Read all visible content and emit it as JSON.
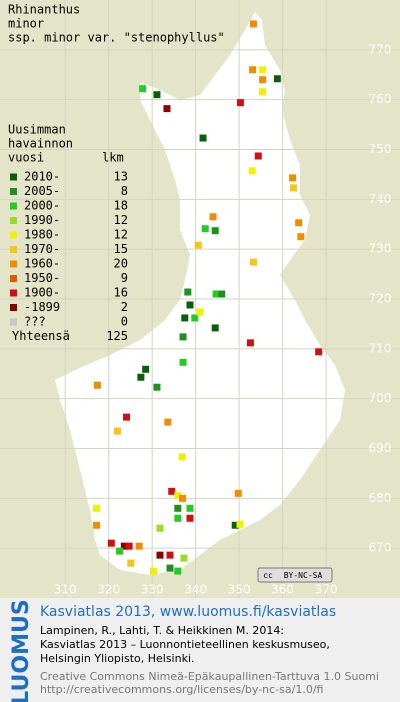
{
  "title": [
    "Rhinanthus",
    "minor",
    "ssp. minor var. \"stenophyllus\""
  ],
  "legend": {
    "heading": [
      "Uusimman",
      "havainnon",
      "vuosi"
    ],
    "count_heading": "lkm",
    "items": [
      {
        "label": "2010-",
        "count": 13,
        "color": "#0b5d0b"
      },
      {
        "label": "2005-",
        "count": 8,
        "color": "#1f8f1f"
      },
      {
        "label": "2000-",
        "count": 18,
        "color": "#22cc22"
      },
      {
        "label": "1990-",
        "count": 12,
        "color": "#99dd22"
      },
      {
        "label": "1980-",
        "count": 12,
        "color": "#f0f000"
      },
      {
        "label": "1970-",
        "count": 15,
        "color": "#f5c518"
      },
      {
        "label": "1960-",
        "count": 20,
        "color": "#f08c00"
      },
      {
        "label": "1950-",
        "count": 9,
        "color": "#e05a00"
      },
      {
        "label": "1900-",
        "count": 16,
        "color": "#d01010"
      },
      {
        "label": "-1899",
        "count": 2,
        "color": "#8b0000"
      },
      {
        "label": "???",
        "count": 0,
        "color": "#c8c8c8"
      }
    ],
    "total_label": "Yhteensä",
    "total": 125
  },
  "map": {
    "xlim": [
      295,
      387
    ],
    "ylim": [
      660,
      780
    ],
    "xticks": [
      310,
      320,
      330,
      340,
      350,
      360,
      370
    ],
    "yticks": [
      670,
      680,
      690,
      700,
      710,
      720,
      730,
      740,
      750,
      760,
      770
    ],
    "points": [
      [
        353.3,
        775.2,
        6
      ],
      [
        327.8,
        762.2,
        2
      ],
      [
        331.1,
        761.0,
        0
      ],
      [
        333.4,
        758.2,
        9
      ],
      [
        353.1,
        766.0,
        6
      ],
      [
        355.4,
        766.0,
        4
      ],
      [
        355.4,
        764.0,
        6
      ],
      [
        355.4,
        761.6,
        4
      ],
      [
        358.8,
        764.2,
        0
      ],
      [
        350.3,
        759.4,
        8
      ],
      [
        341.7,
        752.3,
        0
      ],
      [
        354.4,
        748.7,
        8
      ],
      [
        362.3,
        744.3,
        6
      ],
      [
        362.5,
        742.3,
        5
      ],
      [
        353.0,
        745.7,
        4
      ],
      [
        344.0,
        736.5,
        6
      ],
      [
        342.2,
        734.1,
        2
      ],
      [
        344.5,
        733.7,
        1
      ],
      [
        340.6,
        730.8,
        5
      ],
      [
        363.7,
        735.3,
        6
      ],
      [
        364.2,
        732.5,
        6
      ],
      [
        353.3,
        727.4,
        5
      ],
      [
        344.7,
        721.0,
        2
      ],
      [
        346.0,
        721.0,
        1
      ],
      [
        338.2,
        721.4,
        1
      ],
      [
        338.7,
        718.8,
        0
      ],
      [
        337.5,
        716.2,
        0
      ],
      [
        339.8,
        716.2,
        2
      ],
      [
        341.0,
        717.4,
        4
      ],
      [
        344.5,
        714.2,
        0
      ],
      [
        352.6,
        711.2,
        8
      ],
      [
        368.3,
        709.4,
        8
      ],
      [
        337.1,
        712.4,
        1
      ],
      [
        337.1,
        707.3,
        2
      ],
      [
        328.5,
        705.9,
        0
      ],
      [
        327.4,
        704.3,
        0
      ],
      [
        331.1,
        702.3,
        1
      ],
      [
        317.4,
        702.7,
        6
      ],
      [
        324.1,
        696.3,
        8
      ],
      [
        322.0,
        693.5,
        5
      ],
      [
        333.6,
        695.3,
        6
      ],
      [
        336.9,
        688.3,
        4
      ],
      [
        334.5,
        681.4,
        8
      ],
      [
        335.9,
        680.6,
        4
      ],
      [
        337.0,
        680.0,
        6
      ],
      [
        335.9,
        678.0,
        1
      ],
      [
        338.7,
        678.0,
        2
      ],
      [
        335.9,
        676.0,
        2
      ],
      [
        338.7,
        676.0,
        8
      ],
      [
        349.1,
        674.6,
        0
      ],
      [
        350.2,
        674.8,
        4
      ],
      [
        331.8,
        674.0,
        3
      ],
      [
        317.2,
        678.0,
        4
      ],
      [
        317.2,
        674.6,
        6
      ],
      [
        320.6,
        671.0,
        8
      ],
      [
        323.6,
        670.4,
        9
      ],
      [
        324.7,
        670.4,
        8
      ],
      [
        327.0,
        670.4,
        6
      ],
      [
        322.5,
        669.4,
        2
      ],
      [
        331.8,
        668.6,
        9
      ],
      [
        334.1,
        668.6,
        8
      ],
      [
        325.1,
        667.0,
        5
      ],
      [
        330.3,
        665.4,
        4
      ],
      [
        334.1,
        666.0,
        1
      ],
      [
        335.9,
        665.4,
        2
      ],
      [
        337.3,
        668.0,
        3
      ],
      [
        349.8,
        681.0,
        6
      ]
    ]
  },
  "badge": {
    "icon": "cc",
    "text": "BY-NC-SA"
  },
  "footer": {
    "brand": "LUOMUS",
    "link": "Kasviatlas 2013, www.luomus.fi/kasviatlas",
    "citation": [
      "Lampinen, R., Lahti, T. & Heikkinen M. 2014:",
      "Kasviatlas 2013 – Luonnontieteellinen keskusmuseo,",
      "Helsingin Yliopisto, Helsinki."
    ],
    "license": [
      "Creative Commons Nimeä-Epäkaupallinen-Tarttuva 1.0 Suomi",
      "http://creativecommons.org/licenses/by-nc-sa/1.0/fi"
    ]
  }
}
